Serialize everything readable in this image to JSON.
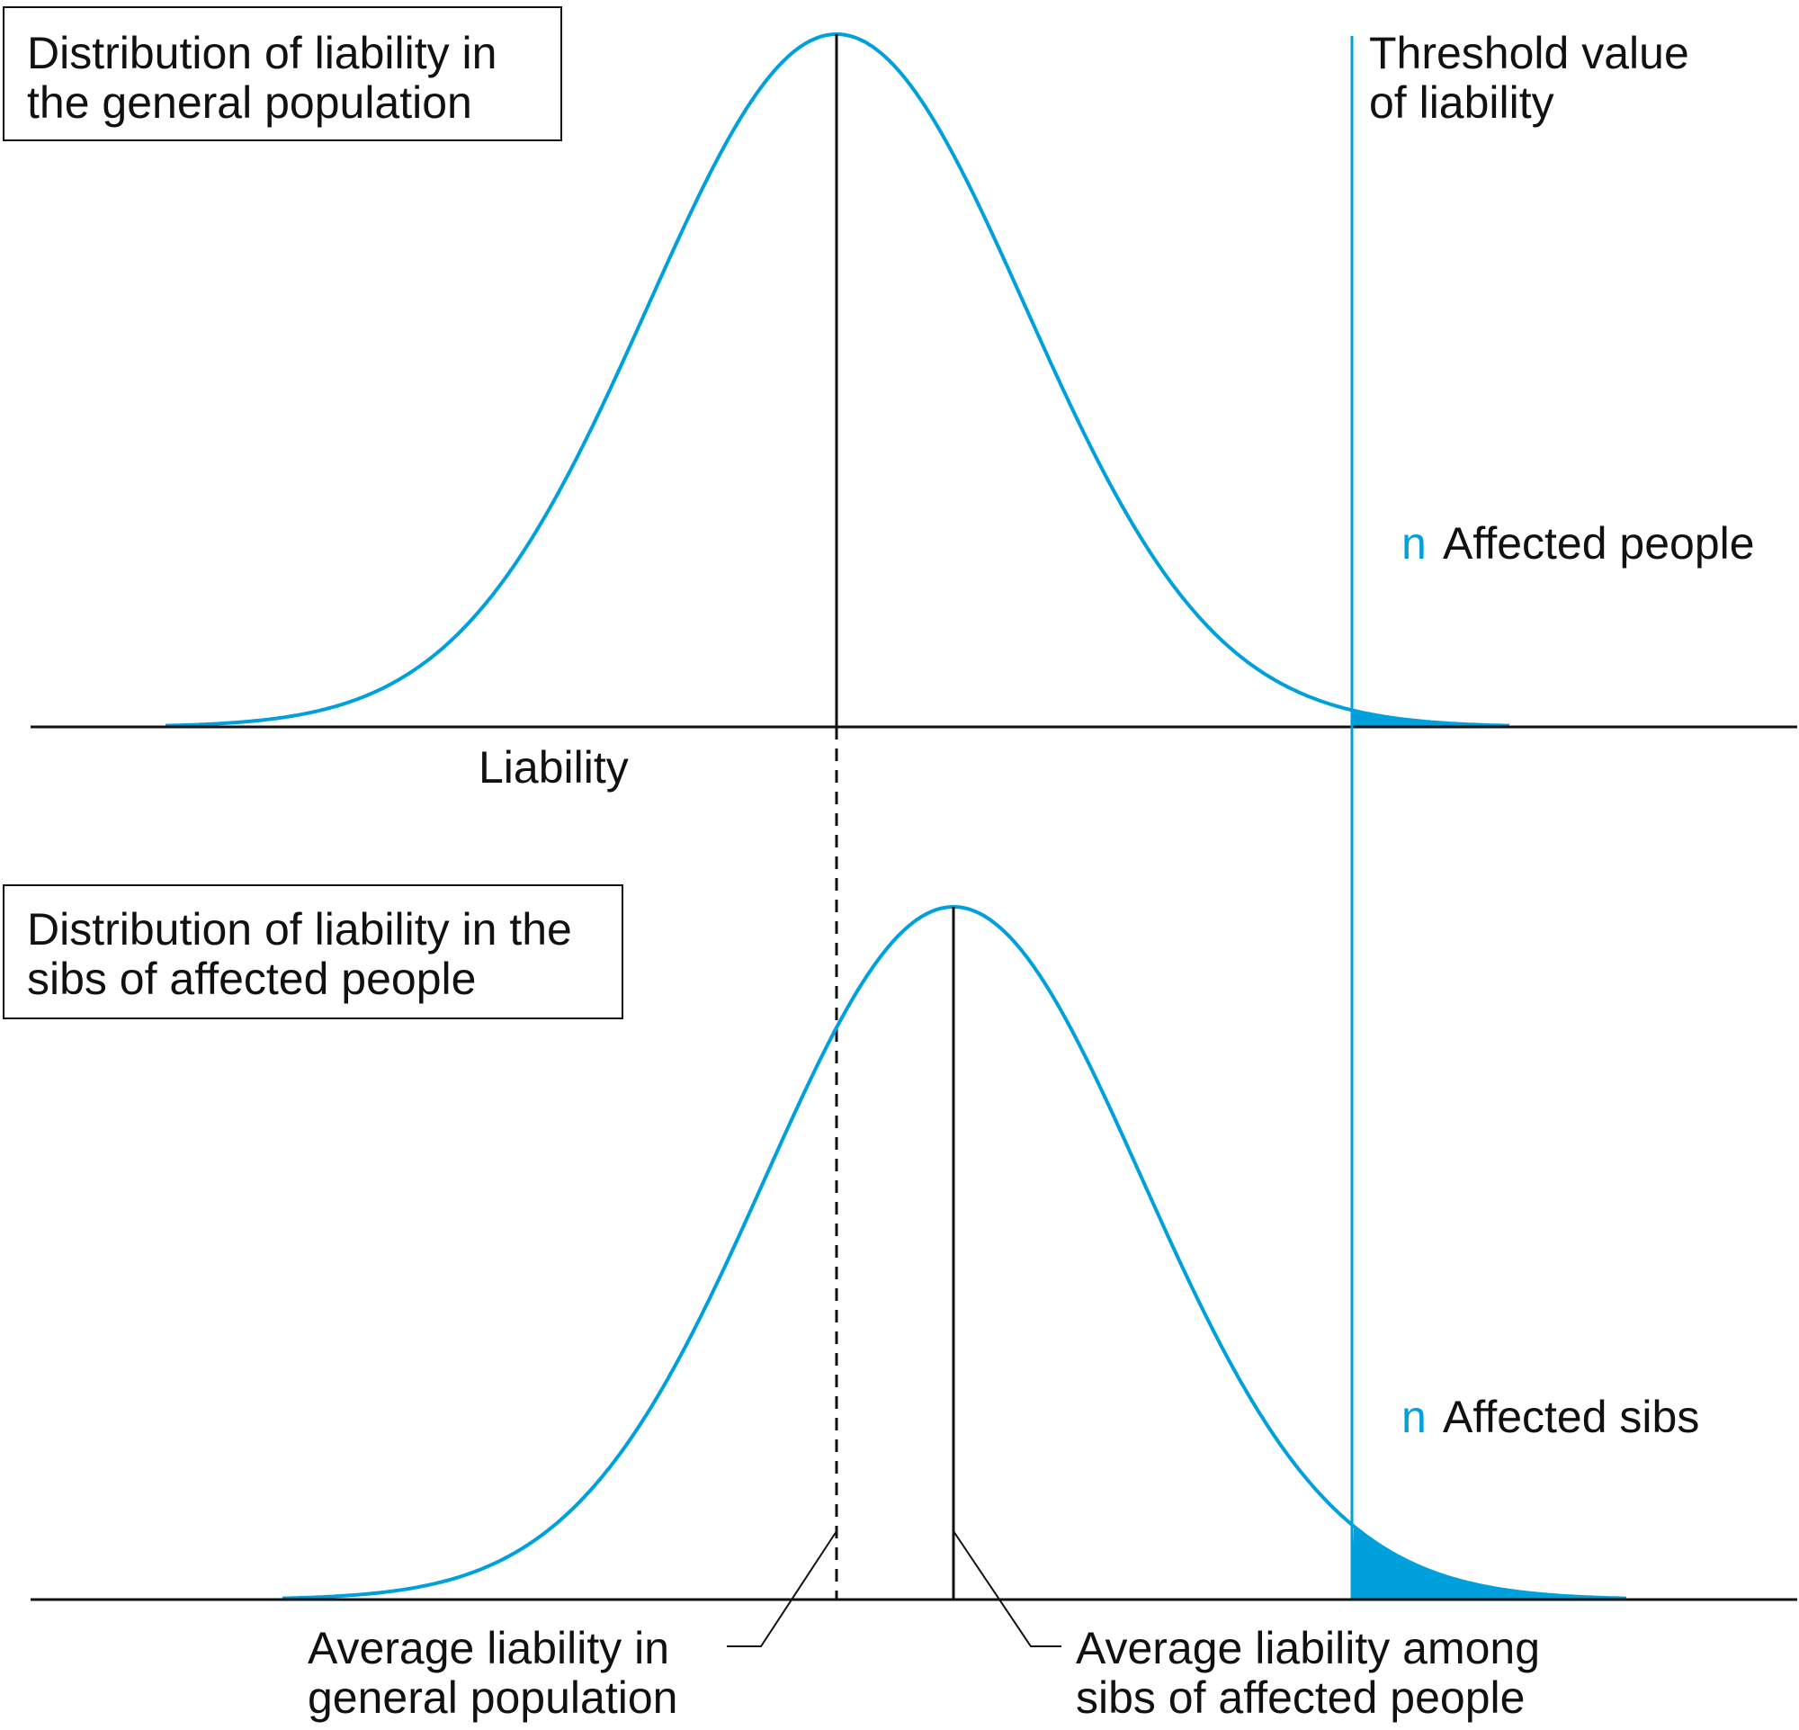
{
  "colors": {
    "curve": "#00a0dc",
    "text": "#111111",
    "axis": "#111111",
    "fill": "#00a0dc"
  },
  "top_panel": {
    "title_line1": "Distribution of liability in",
    "title_line2": "the general population",
    "axis_label": "Liability",
    "affected_marker": "n",
    "affected_label": "Affected people"
  },
  "bottom_panel": {
    "title_line1": "Distribution of liability in the",
    "title_line2": "sibs of affected people",
    "affected_marker": "n",
    "affected_label": "Affected sibs"
  },
  "threshold": {
    "line1": "Threshold value",
    "line2": "of liability"
  },
  "annotations": {
    "general_avg_line1": "Average liability in",
    "general_avg_line2": "general population",
    "sibs_avg_line1": "Average liability among",
    "sibs_avg_line2": "sibs of affected people"
  }
}
